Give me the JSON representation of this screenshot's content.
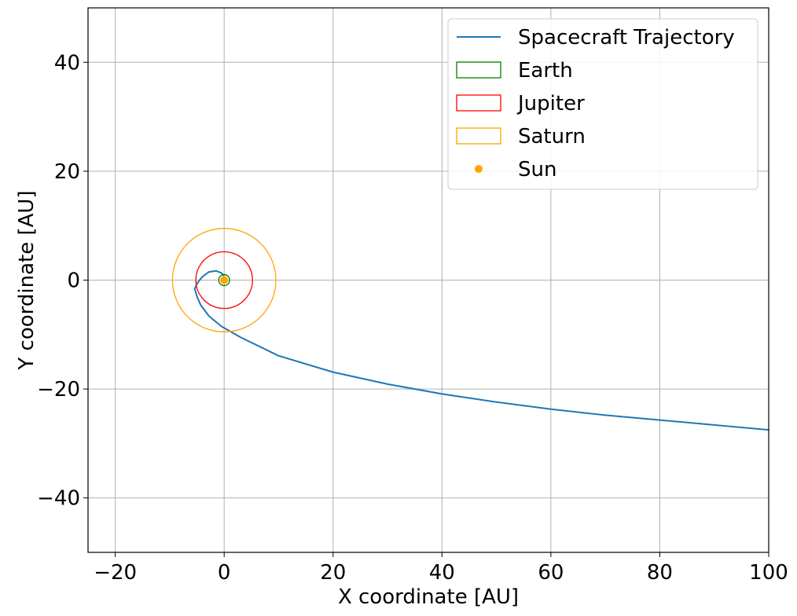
{
  "chart_data": {
    "type": "line",
    "xlabel": "X coordinate [AU]",
    "ylabel": "Y coordinate [AU]",
    "xlim": [
      -25,
      100
    ],
    "ylim": [
      -50,
      50
    ],
    "xticks": [
      -20,
      0,
      20,
      40,
      60,
      80,
      100
    ],
    "yticks": [
      -40,
      -20,
      0,
      20,
      40
    ],
    "xtick_labels": [
      "−20",
      "0",
      "20",
      "40",
      "60",
      "80",
      "100"
    ],
    "ytick_labels": [
      "−40",
      "−20",
      "0",
      "20",
      "40"
    ],
    "grid": true,
    "legend_position": "top-right",
    "series": [
      {
        "name": "Spacecraft Trajectory",
        "kind": "line",
        "color": "#1f77b4",
        "x": [
          0,
          -0.5,
          -1.5,
          -2.8,
          -3.9,
          -4.6,
          -5.1,
          -5.4,
          -5.0,
          -4.3,
          -2.8,
          -0.5,
          3,
          10,
          20,
          30,
          40,
          50,
          60,
          70,
          80,
          90,
          100
        ],
        "y": [
          0.8,
          1.3,
          1.7,
          1.5,
          0.7,
          -0.1,
          -0.9,
          -1.6,
          -3.0,
          -4.6,
          -6.6,
          -8.5,
          -10.5,
          -13.9,
          -16.9,
          -19.1,
          -20.9,
          -22.4,
          -23.7,
          -24.8,
          -25.7,
          -26.6,
          -27.5
        ]
      },
      {
        "name": "Earth",
        "kind": "circle",
        "color": "#008000",
        "radius": 1.0,
        "center": [
          0,
          0
        ]
      },
      {
        "name": "Jupiter",
        "kind": "circle",
        "color": "#ff0000",
        "radius": 5.2,
        "center": [
          0,
          0
        ]
      },
      {
        "name": "Saturn",
        "kind": "circle",
        "color": "#ffa500",
        "radius": 9.5,
        "center": [
          0,
          0
        ]
      },
      {
        "name": "Sun",
        "kind": "point",
        "color": "#ffa500",
        "x": 0,
        "y": 0
      }
    ],
    "legend": [
      {
        "label": "Spacecraft Trajectory",
        "marker": "line",
        "color": "#1f77b4"
      },
      {
        "label": "Earth",
        "marker": "rect",
        "color": "#008000"
      },
      {
        "label": "Jupiter",
        "marker": "rect",
        "color": "#ff0000"
      },
      {
        "label": "Saturn",
        "marker": "rect",
        "color": "#ffa500"
      },
      {
        "label": "Sun",
        "marker": "dot",
        "color": "#ffa500"
      }
    ]
  }
}
